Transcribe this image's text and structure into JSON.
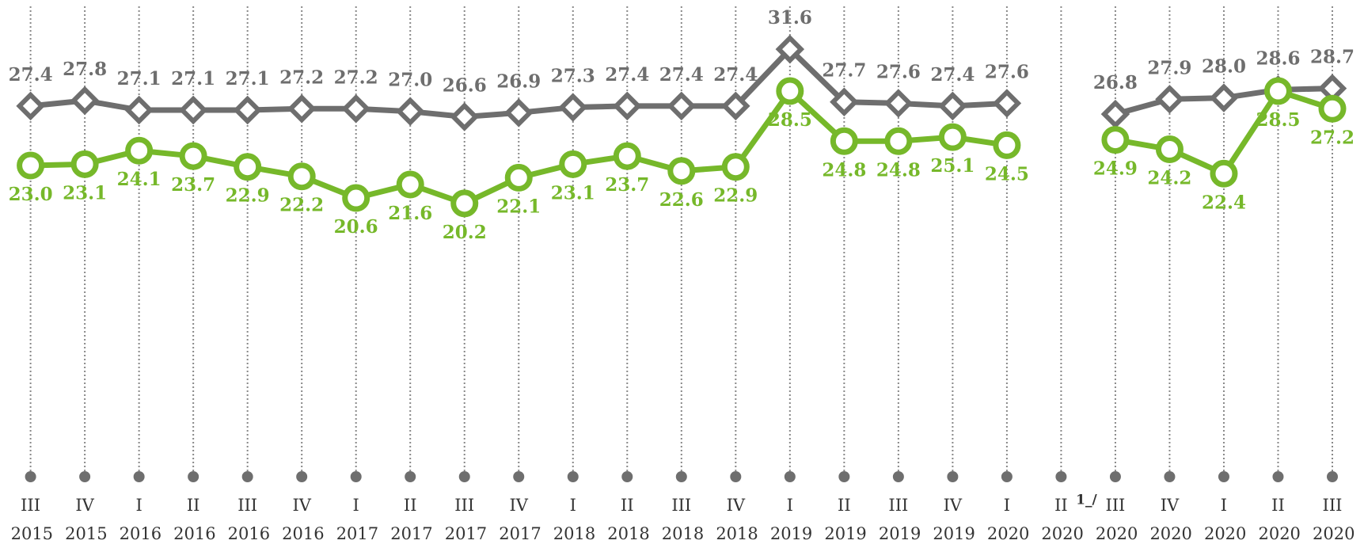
{
  "chart_data": {
    "type": "line",
    "categories": [
      "III 2015",
      "IV 2015",
      "I 2016",
      "II 2016",
      "III 2016",
      "IV 2016",
      "I 2017",
      "II 2017",
      "III 2017",
      "IV 2017",
      "I 2018",
      "II 2018",
      "III 2018",
      "IV 2018",
      "I 2019",
      "II 2019",
      "III 2019",
      "IV 2019",
      "I 2020",
      "II 2020",
      "III 2020",
      "IV 2020",
      "I 2020",
      "II 2020",
      "III 2020"
    ],
    "footnote": "1_/",
    "series": [
      {
        "color": "#6e6e6e",
        "marker": "diamond",
        "values": [
          27.4,
          27.8,
          27.1,
          27.1,
          27.1,
          27.2,
          27.2,
          27.0,
          26.6,
          26.9,
          27.3,
          27.4,
          27.4,
          27.4,
          31.6,
          27.7,
          27.6,
          27.4,
          27.6,
          null,
          26.8,
          27.9,
          28.0,
          28.6,
          28.7
        ],
        "value_labels": [
          "27.4",
          "27.8",
          "27.1",
          "27.1",
          "27.1",
          "27.2",
          "27.2",
          "27.0",
          "26.6",
          "26.9",
          "27.3",
          "27.4",
          "27.4",
          "27.4",
          "31.6",
          "27.7",
          "27.6",
          "27.4",
          "27.6",
          null,
          "26.8",
          "27.9",
          "28.0",
          "28.6",
          "28.7"
        ]
      },
      {
        "color": "#76b82a",
        "marker": "circle",
        "values": [
          23.0,
          23.1,
          24.1,
          23.7,
          22.9,
          22.2,
          20.6,
          21.6,
          20.2,
          22.1,
          23.1,
          23.7,
          22.6,
          22.9,
          28.5,
          24.8,
          24.8,
          25.1,
          24.5,
          null,
          24.9,
          24.2,
          22.4,
          28.5,
          27.2
        ],
        "value_labels": [
          "23.0",
          "23.1",
          "24.1",
          "23.7",
          "22.9",
          "22.2",
          "20.6",
          "21.6",
          "20.2",
          "22.1",
          "23.1",
          "23.7",
          "22.6",
          "22.9",
          "28.5",
          "24.8",
          "24.8",
          "25.1",
          "24.5",
          null,
          "24.9",
          "24.2",
          "22.4",
          "28.5",
          "27.2"
        ]
      }
    ],
    "ylim": [
      0,
      35
    ]
  }
}
